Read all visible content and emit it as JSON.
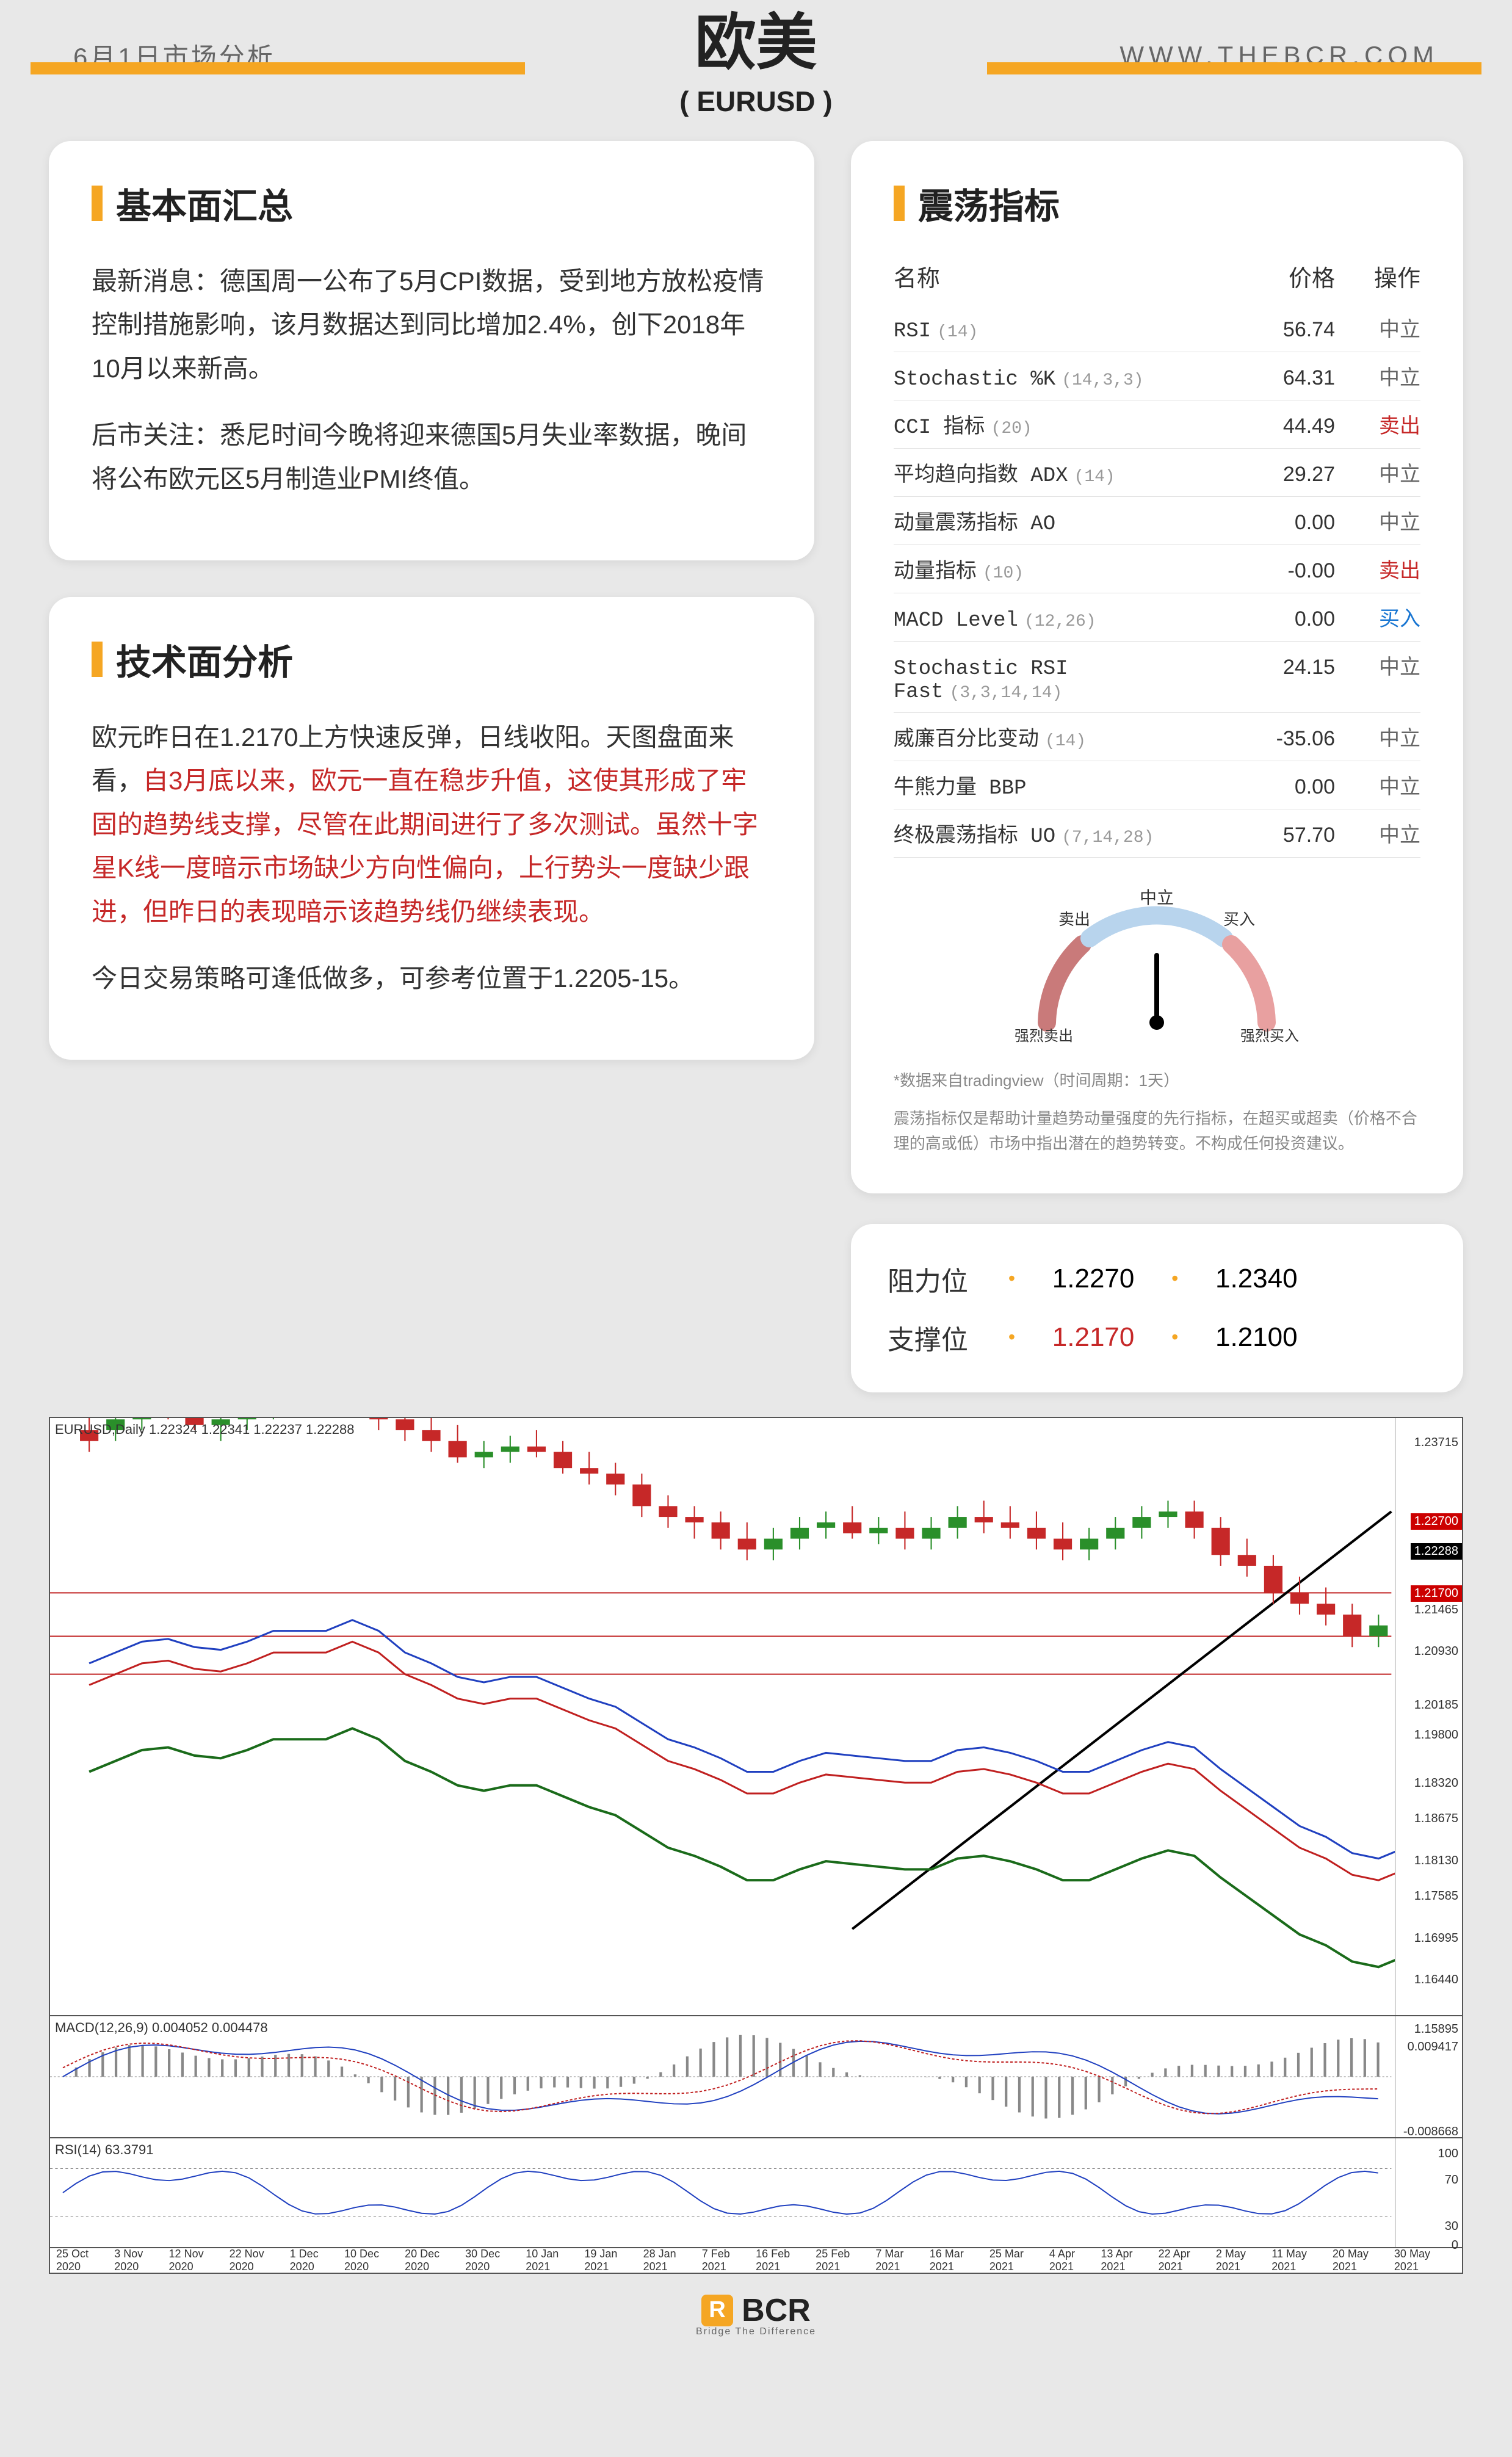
{
  "header": {
    "date_sub": "6月1日市场分析",
    "title": "欧美",
    "subtitle": "( EURUSD )",
    "url": "WWW.THEBCR.COM",
    "accent_color": "#f5a623"
  },
  "fundamentals": {
    "title": "基本面汇总",
    "p1": "最新消息：德国周一公布了5月CPI数据，受到地方放松疫情控制措施影响，该月数据达到同比增加2.4%，创下2018年10月以来新高。",
    "p2": "后市关注：悉尼时间今晚将迎来德国5月失业率数据，晚间将公布欧元区5月制造业PMI终值。"
  },
  "technical": {
    "title": "技术面分析",
    "p1_pre": "欧元昨日在1.2170上方快速反弹，日线收阳。天图盘面来看，",
    "p1_red": "自3月底以来，欧元一直在稳步升值，这使其形成了牢固的趋势线支撑，尽管在此期间进行了多次测试。虽然十字星K线一度暗示市场缺少方向性偏向，上行势头一度缺少跟进，但昨日的表现暗示该趋势线仍继续表现。",
    "p2": "今日交易策略可逢低做多，可参考位置于1.2205-15。"
  },
  "oscillators": {
    "title": "震荡指标",
    "columns": {
      "name": "名称",
      "price": "价格",
      "action": "操作"
    },
    "rows": [
      {
        "name": "RSI",
        "params": "(14)",
        "price": "56.74",
        "action": "中立",
        "action_class": "neutral"
      },
      {
        "name": "Stochastic %K",
        "params": "(14,3,3)",
        "price": "64.31",
        "action": "中立",
        "action_class": "neutral"
      },
      {
        "name": "CCI 指标",
        "params": "(20)",
        "price": "44.49",
        "action": "卖出",
        "action_class": "sell"
      },
      {
        "name": "平均趋向指数 ADX",
        "params": "(14)",
        "price": "29.27",
        "action": "中立",
        "action_class": "neutral"
      },
      {
        "name": "动量震荡指标 AO",
        "params": "",
        "price": "0.00",
        "action": "中立",
        "action_class": "neutral"
      },
      {
        "name": "动量指标",
        "params": "(10)",
        "price": "-0.00",
        "action": "卖出",
        "action_class": "sell"
      },
      {
        "name": "MACD Level",
        "params": "(12,26)",
        "price": "0.00",
        "action": "买入",
        "action_class": "buy"
      },
      {
        "name": "Stochastic RSI Fast",
        "params": "(3,3,14,14)",
        "price": "24.15",
        "action": "中立",
        "action_class": "neutral"
      },
      {
        "name": "威廉百分比变动",
        "params": "(14)",
        "price": "-35.06",
        "action": "中立",
        "action_class": "neutral"
      },
      {
        "name": "牛熊力量 BBP",
        "params": "",
        "price": "0.00",
        "action": "中立",
        "action_class": "neutral"
      },
      {
        "name": "终极震荡指标 UO",
        "params": "(7,14,28)",
        "price": "57.70",
        "action": "中立",
        "action_class": "neutral"
      }
    ],
    "gauge": {
      "labels": {
        "strong_sell": "强烈卖出",
        "sell": "卖出",
        "neutral": "中立",
        "buy": "买入",
        "strong_buy": "强烈买入"
      },
      "needle_angle_deg": 90,
      "colors": {
        "sell_arc": "#c9a0a0",
        "neutral_arc": "#cde2f5",
        "buy_arc": "#e8a0a0"
      }
    },
    "disclaimer1": "*数据来自tradingview（时间周期：1天）",
    "disclaimer2": "震荡指标仅是帮助计量趋势动量强度的先行指标，在超买或超卖（价格不合理的高或低）市场中指出潜在的趋势转变。不构成任何投资建议。"
  },
  "levels": {
    "resistance": {
      "label": "阻力位",
      "v1": "1.2270",
      "v2": "1.2340",
      "v1_color": "#333",
      "v2_color": "#333"
    },
    "support": {
      "label": "支撑位",
      "v1": "1.2170",
      "v2": "1.2100",
      "v1_color": "#c62828",
      "v2_color": "#333"
    }
  },
  "chart": {
    "title_label": "EURUSD,Daily 1.22324 1.22341 1.22237 1.22288",
    "macd_label": "MACD(12,26,9) 0.004052 0.004478",
    "rsi_label": "RSI(14) 63.3791",
    "y_ticks": [
      {
        "val": "1.23715",
        "pct": 3
      },
      {
        "val": "1.21465",
        "pct": 31
      },
      {
        "val": "1.20930",
        "pct": 38
      },
      {
        "val": "1.20185",
        "pct": 47
      },
      {
        "val": "1.19800",
        "pct": 52
      },
      {
        "val": "1.18320",
        "pct": 60
      },
      {
        "val": "1.18675",
        "pct": 66
      },
      {
        "val": "1.18130",
        "pct": 73
      },
      {
        "val": "1.17585",
        "pct": 79
      },
      {
        "val": "1.16995",
        "pct": 86
      },
      {
        "val": "1.16440",
        "pct": 93
      }
    ],
    "price_tags": [
      {
        "val": "1.22700",
        "pct": 16,
        "class": ""
      },
      {
        "val": "1.22288",
        "pct": 21,
        "class": "black"
      },
      {
        "val": "1.21700",
        "pct": 28,
        "class": ""
      }
    ],
    "macd_y": [
      {
        "val": "1.15895",
        "pct": 5
      },
      {
        "val": "0.009417",
        "pct": 20
      },
      {
        "val": "-0.008668",
        "pct": 90
      }
    ],
    "rsi_y": [
      {
        "val": "100",
        "pct": 8
      },
      {
        "val": "70",
        "pct": 32
      },
      {
        "val": "30",
        "pct": 75
      },
      {
        "val": "0",
        "pct": 92
      }
    ],
    "dates": [
      "25 Oct 2020",
      "3 Nov 2020",
      "12 Nov 2020",
      "22 Nov 2020",
      "1 Dec 2020",
      "10 Dec 2020",
      "20 Dec 2020",
      "30 Dec 2020",
      "10 Jan 2021",
      "19 Jan 2021",
      "28 Jan 2021",
      "7 Feb 2021",
      "16 Feb 2021",
      "25 Feb 2021",
      "7 Mar 2021",
      "16 Mar 2021",
      "25 Mar 2021",
      "4 Apr 2021",
      "13 Apr 2021",
      "22 Apr 2021",
      "2 May 2021",
      "11 May 2021",
      "20 May 2021",
      "30 May 2021"
    ],
    "colors": {
      "candle_up": "#2a8f2a",
      "candle_down": "#c62828",
      "ma_blue": "#2040c0",
      "ma_red": "#c02020",
      "ma_green": "#1a6b1a",
      "trendline": "#000",
      "hline": "#c02020"
    },
    "candles": [
      [
        0.5,
        58,
        64,
        56,
        60,
        "d"
      ],
      [
        1,
        60,
        63,
        58,
        62,
        "u"
      ],
      [
        1.5,
        62,
        66,
        60,
        64,
        "u"
      ],
      [
        2,
        64,
        67,
        62,
        63,
        "d"
      ],
      [
        2.5,
        63,
        65,
        60,
        61,
        "d"
      ],
      [
        3,
        61,
        65,
        58,
        62,
        "u"
      ],
      [
        3.5,
        62,
        66,
        60,
        64,
        "u"
      ],
      [
        4,
        64,
        68,
        62,
        66,
        "u"
      ],
      [
        4.5,
        66,
        69,
        63,
        64,
        "d"
      ],
      [
        5,
        64,
        67,
        63,
        66,
        "u"
      ],
      [
        5.5,
        66,
        70,
        64,
        68,
        "u"
      ],
      [
        6,
        68,
        70,
        60,
        62,
        "d"
      ],
      [
        6.5,
        62,
        65,
        58,
        60,
        "d"
      ],
      [
        7,
        60,
        63,
        56,
        58,
        "d"
      ],
      [
        7.5,
        58,
        61,
        54,
        55,
        "d"
      ],
      [
        8,
        55,
        58,
        53,
        56,
        "u"
      ],
      [
        8.5,
        56,
        59,
        54,
        57,
        "u"
      ],
      [
        9,
        57,
        60,
        55,
        56,
        "d"
      ],
      [
        9.5,
        56,
        58,
        52,
        53,
        "d"
      ],
      [
        10,
        53,
        56,
        50,
        52,
        "d"
      ],
      [
        10.5,
        52,
        54,
        48,
        50,
        "d"
      ],
      [
        11,
        50,
        52,
        44,
        46,
        "d"
      ],
      [
        11.5,
        46,
        48,
        42,
        44,
        "d"
      ],
      [
        12,
        44,
        46,
        40,
        43,
        "d"
      ],
      [
        12.5,
        43,
        45,
        38,
        40,
        "d"
      ],
      [
        13,
        40,
        43,
        36,
        38,
        "d"
      ],
      [
        13.5,
        38,
        42,
        36,
        40,
        "u"
      ],
      [
        14,
        40,
        44,
        38,
        42,
        "u"
      ],
      [
        14.5,
        42,
        45,
        40,
        43,
        "u"
      ],
      [
        15,
        43,
        46,
        40,
        41,
        "d"
      ],
      [
        15.5,
        41,
        44,
        39,
        42,
        "u"
      ],
      [
        16,
        42,
        45,
        38,
        40,
        "d"
      ],
      [
        16.5,
        40,
        44,
        38,
        42,
        "u"
      ],
      [
        17,
        42,
        46,
        40,
        44,
        "u"
      ],
      [
        17.5,
        44,
        47,
        41,
        43,
        "d"
      ],
      [
        18,
        43,
        46,
        40,
        42,
        "d"
      ],
      [
        18.5,
        42,
        45,
        38,
        40,
        "d"
      ],
      [
        19,
        40,
        43,
        36,
        38,
        "d"
      ],
      [
        19.5,
        38,
        42,
        36,
        40,
        "u"
      ],
      [
        20,
        40,
        44,
        38,
        42,
        "u"
      ],
      [
        20.5,
        42,
        46,
        40,
        44,
        "u"
      ],
      [
        21,
        44,
        47,
        42,
        45,
        "u"
      ],
      [
        21.5,
        45,
        47,
        40,
        42,
        "d"
      ],
      [
        22,
        42,
        44,
        35,
        37,
        "d"
      ],
      [
        22.5,
        37,
        40,
        33,
        35,
        "d"
      ],
      [
        23,
        35,
        37,
        28,
        30,
        "d"
      ],
      [
        23.5,
        30,
        33,
        26,
        28,
        "d"
      ],
      [
        24,
        28,
        31,
        24,
        26,
        "d"
      ],
      [
        24.5,
        26,
        28,
        20,
        22,
        "d"
      ],
      [
        25,
        22,
        26,
        20,
        24,
        "u"
      ],
      [
        25.5,
        24,
        28,
        22,
        26,
        "u"
      ],
      [
        26,
        26,
        30,
        24,
        28,
        "u"
      ],
      [
        26.5,
        28,
        30,
        22,
        25,
        "d"
      ],
      [
        27,
        25,
        28,
        20,
        22,
        "d"
      ],
      [
        27.5,
        22,
        25,
        18,
        20,
        "d"
      ],
      [
        28,
        20,
        24,
        17,
        22,
        "u"
      ],
      [
        28.5,
        22,
        25,
        18,
        20,
        "d"
      ],
      [
        29,
        20,
        23,
        15,
        17,
        "d"
      ],
      [
        29.5,
        17,
        20,
        13,
        15,
        "d"
      ],
      [
        30,
        15,
        18,
        10,
        12,
        "d"
      ],
      [
        30.5,
        12,
        15,
        8,
        10,
        "d"
      ],
      [
        31,
        10,
        14,
        8,
        12,
        "u"
      ],
      [
        31.5,
        12,
        16,
        10,
        14,
        "u"
      ],
      [
        32,
        14,
        18,
        12,
        16,
        "u"
      ],
      [
        32.5,
        16,
        20,
        14,
        18,
        "u"
      ],
      [
        33,
        18,
        22,
        16,
        20,
        "u"
      ],
      [
        33.5,
        20,
        24,
        18,
        22,
        "u"
      ],
      [
        34,
        22,
        26,
        20,
        24,
        "u"
      ],
      [
        34.5,
        24,
        28,
        22,
        26,
        "u"
      ],
      [
        35,
        26,
        30,
        24,
        28,
        "u"
      ],
      [
        35.5,
        28,
        32,
        26,
        30,
        "u"
      ],
      [
        36,
        30,
        33,
        26,
        28,
        "d"
      ],
      [
        36.5,
        28,
        31,
        25,
        27,
        "d"
      ],
      [
        37,
        27,
        30,
        24,
        28,
        "u"
      ],
      [
        37.5,
        28,
        32,
        26,
        30,
        "u"
      ],
      [
        38,
        30,
        34,
        28,
        32,
        "u"
      ],
      [
        38.5,
        32,
        35,
        30,
        33,
        "u"
      ],
      [
        39,
        33,
        36,
        30,
        32,
        "d"
      ],
      [
        39.5,
        32,
        35,
        29,
        31,
        "d"
      ],
      [
        40,
        31,
        34,
        28,
        30,
        "d"
      ],
      [
        40.5,
        30,
        34,
        28,
        32,
        "u"
      ],
      [
        41,
        32,
        36,
        30,
        34,
        "u"
      ],
      [
        41.5,
        34,
        37,
        32,
        35,
        "u"
      ],
      [
        42,
        35,
        38,
        32,
        34,
        "d"
      ],
      [
        42.5,
        34,
        37,
        31,
        33,
        "d"
      ],
      [
        43,
        33,
        36,
        30,
        32,
        "d"
      ],
      [
        43.5,
        32,
        35,
        29,
        31,
        "d"
      ],
      [
        44,
        31,
        34,
        28,
        30,
        "d"
      ],
      [
        44.5,
        30,
        33,
        27,
        29,
        "d"
      ],
      [
        45,
        29,
        32,
        26,
        30,
        "u"
      ],
      [
        45.5,
        30,
        34,
        28,
        32,
        "u"
      ],
      [
        46,
        32,
        35,
        30,
        33,
        "u"
      ],
      [
        46.5,
        33,
        36,
        30,
        32,
        "d"
      ],
      [
        47,
        32,
        35,
        30,
        33,
        "u"
      ],
      [
        47.5,
        33,
        37,
        31,
        35,
        "u"
      ],
      [
        48,
        35,
        38,
        32,
        34,
        "d"
      ],
      [
        48.5,
        34,
        37,
        32,
        35,
        "u"
      ]
    ],
    "candles_y_offset": 50
  },
  "footer": {
    "brand": "BCR",
    "tagline": "Bridge The Difference"
  }
}
